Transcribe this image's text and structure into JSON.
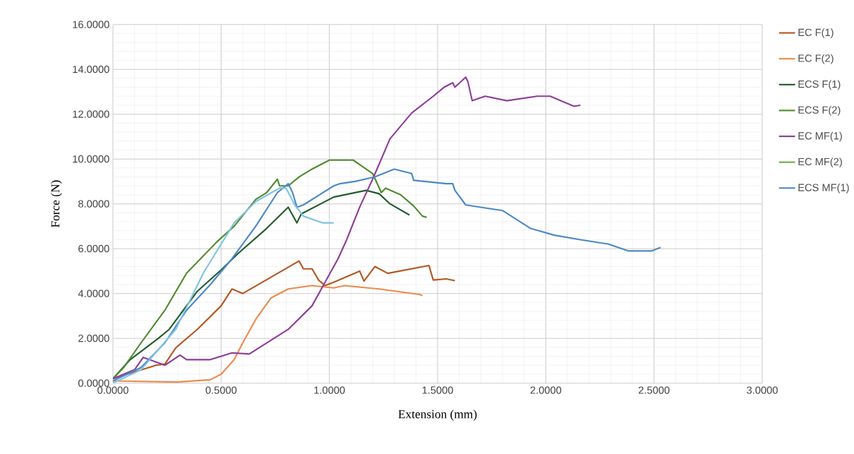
{
  "chart_data": {
    "type": "line",
    "xlabel": "Extension (mm)",
    "ylabel": "Force (N)",
    "xlim": [
      0,
      3
    ],
    "ylim": [
      0,
      16
    ],
    "xticks": [
      {
        "value": 0,
        "label": "0.0000"
      },
      {
        "value": 0.5,
        "label": "0.5000"
      },
      {
        "value": 1,
        "label": "1.0000"
      },
      {
        "value": 1.5,
        "label": "1.5000"
      },
      {
        "value": 2,
        "label": "2.0000"
      },
      {
        "value": 2.5,
        "label": "2.5000"
      },
      {
        "value": 3,
        "label": "3.0000"
      }
    ],
    "yticks": [
      {
        "value": 0,
        "label": "0.0000"
      },
      {
        "value": 2,
        "label": "2.0000"
      },
      {
        "value": 4,
        "label": "4.0000"
      },
      {
        "value": 6,
        "label": "6.0000"
      },
      {
        "value": 8,
        "label": "8.0000"
      },
      {
        "value": 10,
        "label": "10.0000"
      },
      {
        "value": 12,
        "label": "12.0000"
      },
      {
        "value": 14,
        "label": "14.0000"
      },
      {
        "value": 16,
        "label": "16.0000"
      }
    ],
    "grid": true,
    "legend": "right",
    "marker": "none",
    "line_style": "solid",
    "series": [
      {
        "name": "EC F(1)",
        "color": "#b5561f",
        "x": [
          0,
          0.1,
          0.2,
          0.24,
          0.29,
          0.39,
          0.5,
          0.55,
          0.6,
          0.86,
          0.88,
          0.92,
          0.95,
          0.98,
          1.02,
          1.14,
          1.16,
          1.21,
          1.27,
          1.46,
          1.48,
          1.54,
          1.58
        ],
        "values": [
          0.2,
          0.5,
          0.8,
          0.85,
          1.57,
          2.4,
          3.45,
          4.2,
          4.0,
          5.45,
          5.1,
          5.1,
          4.6,
          4.35,
          4.5,
          5.0,
          4.55,
          5.2,
          4.9,
          5.25,
          4.6,
          4.65,
          4.57
        ]
      },
      {
        "name": "EC F(2)",
        "color": "#ed8a4c",
        "x": [
          0,
          0.3,
          0.45,
          0.5,
          0.56,
          0.6,
          0.66,
          0.73,
          0.81,
          0.92,
          1.02,
          1.07,
          1.23,
          1.42,
          1.43
        ],
        "values": [
          0.1,
          0.05,
          0.15,
          0.4,
          1.05,
          1.8,
          2.85,
          3.8,
          4.2,
          4.35,
          4.25,
          4.35,
          4.2,
          3.95,
          3.9
        ]
      },
      {
        "name": "ECS F(1)",
        "color": "#1f5c2b",
        "x": [
          0,
          0.08,
          0.21,
          0.26,
          0.39,
          0.5,
          0.58,
          0.71,
          0.81,
          0.85,
          0.87,
          1.02,
          1.17,
          1.23,
          1.28,
          1.37
        ],
        "values": [
          0.2,
          1.05,
          2.0,
          2.4,
          4.1,
          5.05,
          5.8,
          6.9,
          7.85,
          7.15,
          7.55,
          8.3,
          8.6,
          8.45,
          8.0,
          7.5
        ]
      },
      {
        "name": "ECS F(2)",
        "color": "#4e8a2e",
        "x": [
          0,
          0.05,
          0.13,
          0.24,
          0.34,
          0.48,
          0.56,
          0.66,
          0.71,
          0.76,
          0.77,
          0.81,
          0.86,
          0.92,
          1.0,
          1.11,
          1.2,
          1.24,
          1.26,
          1.33,
          1.39,
          1.43,
          1.45
        ],
        "values": [
          0.2,
          0.7,
          1.8,
          3.25,
          4.9,
          6.3,
          7.0,
          8.2,
          8.5,
          9.1,
          8.8,
          8.8,
          9.2,
          9.55,
          9.95,
          9.95,
          9.35,
          8.5,
          8.7,
          8.4,
          7.9,
          7.45,
          7.4
        ]
      },
      {
        "name": "EC MF(1)",
        "color": "#8e3c99",
        "x": [
          0,
          0.1,
          0.14,
          0.24,
          0.31,
          0.34,
          0.45,
          0.55,
          0.63,
          0.81,
          0.92,
          0.98,
          1.04,
          1.08,
          1.14,
          1.2,
          1.28,
          1.38,
          1.48,
          1.53,
          1.57,
          1.58,
          1.63,
          1.64,
          1.66,
          1.72,
          1.82,
          1.96,
          2.02,
          2.13,
          2.16
        ],
        "values": [
          0.2,
          0.6,
          1.15,
          0.8,
          1.25,
          1.05,
          1.05,
          1.35,
          1.3,
          2.4,
          3.45,
          4.5,
          5.55,
          6.4,
          7.85,
          9.1,
          10.9,
          12.05,
          12.8,
          13.2,
          13.4,
          13.2,
          13.65,
          13.45,
          12.6,
          12.8,
          12.6,
          12.8,
          12.8,
          12.35,
          12.4
        ]
      },
      {
        "name": "EC MF(2)",
        "color": "#70ad47"
      },
      {
        "name": "ECS MF(1)",
        "color": "#4a88c7",
        "x": [
          0,
          0.13,
          0.24,
          0.34,
          0.45,
          0.55,
          0.66,
          0.76,
          0.81,
          0.83,
          0.85,
          0.88,
          0.97,
          1.02,
          1.05,
          1.12,
          1.21,
          1.3,
          1.38,
          1.39,
          1.54,
          1.57,
          1.58,
          1.63,
          1.8,
          1.93,
          2.04,
          2.16,
          2.29,
          2.38,
          2.49,
          2.53
        ],
        "values": [
          0.1,
          0.7,
          1.8,
          3.25,
          4.4,
          5.55,
          7.0,
          8.5,
          8.9,
          8.5,
          7.85,
          7.95,
          8.5,
          8.8,
          8.9,
          9.0,
          9.2,
          9.55,
          9.35,
          9.05,
          8.9,
          8.9,
          8.6,
          7.95,
          7.7,
          6.9,
          6.6,
          6.4,
          6.2,
          5.9,
          5.9,
          6.05
        ]
      },
      {
        "color": "#7fc4e0",
        "x": [
          0,
          0.13,
          0.29,
          0.42,
          0.5,
          0.56,
          0.66,
          0.77,
          0.8,
          0.84,
          0.88,
          0.97,
          1.02
        ],
        "values": [
          0,
          0.6,
          2.4,
          4.95,
          6.2,
          7.15,
          8.1,
          8.7,
          8.7,
          7.95,
          7.45,
          7.15,
          7.15
        ]
      }
    ]
  }
}
